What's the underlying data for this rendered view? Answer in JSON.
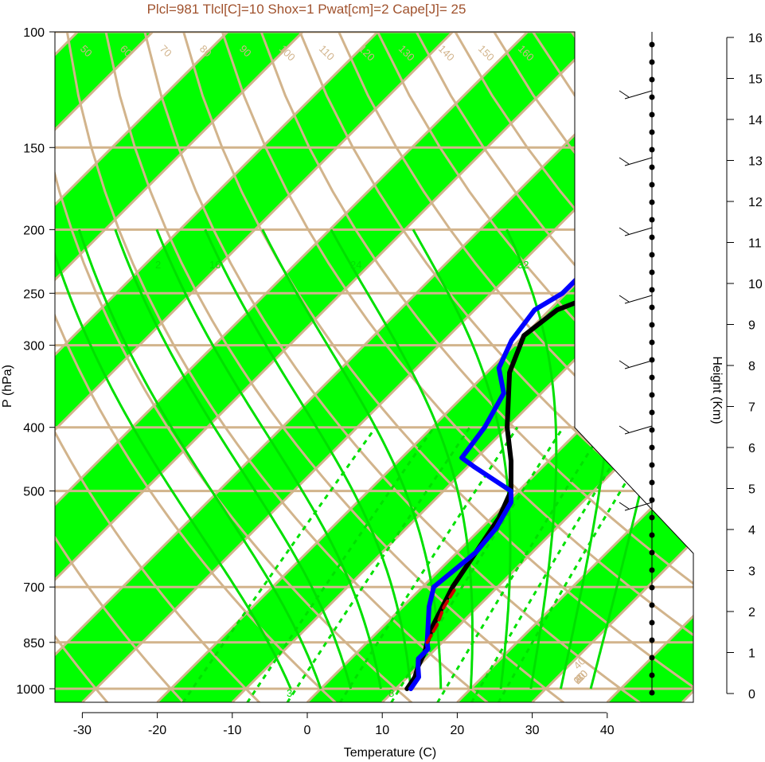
{
  "chart_data": {
    "type": "line",
    "title": "Plcl=981 Tlcl[C]=10 Shox=1 Pwat[cm]=2 Cape[J]= 25",
    "xlabel": "Temperature (C)",
    "ylabel": "P (hPa)",
    "y2label": "Height (Km)",
    "xlim": [
      -34,
      52
    ],
    "ylim": [
      1050,
      100
    ],
    "yscale": "log",
    "x_ticks": [
      "-30",
      "-20",
      "-10",
      "0",
      "10",
      "20",
      "30",
      "40"
    ],
    "y_ticks": [
      "100",
      "150",
      "200",
      "250",
      "300",
      "400",
      "500",
      "700",
      "850",
      "1000"
    ],
    "height_ticks": [
      "0",
      "1",
      "2",
      "3",
      "4",
      "5",
      "6",
      "7",
      "8",
      "9",
      "10",
      "11",
      "12",
      "13",
      "14",
      "15",
      "16"
    ],
    "isotherm_labels": [
      "40",
      "30",
      "20",
      "10",
      "0",
      "-10",
      "-20",
      "-30"
    ],
    "dry_adiabat_labels": [
      "50",
      "60",
      "70",
      "80",
      "90",
      "100",
      "110",
      "120",
      "130",
      "140",
      "150",
      "160"
    ],
    "moist_adiabat_labels": [
      "30",
      "20",
      "10",
      "0",
      "10",
      "20",
      "30"
    ],
    "mixing_ratio_labels": [
      "2",
      "16",
      "24",
      "32",
      "3",
      "8"
    ],
    "colors": {
      "temperature": "#000000",
      "dewpoint": "#0000ff",
      "parcel": "#cc0000",
      "band": "#00ff00",
      "grid": "#d2b48c",
      "moist": "#00e000",
      "title": "#a0522d"
    },
    "series": [
      {
        "name": "temperature",
        "points": [
          [
            11.5,
            1000
          ],
          [
            11,
            960
          ],
          [
            10,
            925
          ],
          [
            9,
            880
          ],
          [
            8,
            850
          ],
          [
            6.5,
            800
          ],
          [
            4,
            700
          ],
          [
            2.5,
            620
          ],
          [
            1,
            550
          ],
          [
            -1,
            500
          ],
          [
            -5,
            450
          ],
          [
            -10,
            400
          ],
          [
            -17,
            330
          ],
          [
            -20,
            290
          ],
          [
            -19,
            265
          ],
          [
            -15.5,
            250
          ],
          [
            -10,
            230
          ],
          [
            -3,
            205
          ],
          [
            3,
            185
          ],
          [
            8,
            170
          ],
          [
            12,
            150
          ],
          [
            14,
            120
          ],
          [
            14.5,
            112
          ]
        ]
      },
      {
        "name": "dewpoint",
        "points": [
          [
            12,
            1000
          ],
          [
            11.5,
            960
          ],
          [
            10,
            925
          ],
          [
            9,
            900
          ],
          [
            9,
            870
          ],
          [
            8,
            850
          ],
          [
            3.5,
            750
          ],
          [
            1.5,
            700
          ],
          [
            2.5,
            620
          ],
          [
            2,
            570
          ],
          [
            0.5,
            520
          ],
          [
            -1,
            500
          ],
          [
            -9,
            460
          ],
          [
            -12,
            445
          ],
          [
            -13,
            400
          ],
          [
            -15,
            355
          ],
          [
            -19,
            325
          ],
          [
            -21,
            295
          ],
          [
            -22,
            265
          ],
          [
            -20.5,
            250
          ],
          [
            -20.5,
            230
          ],
          [
            -22,
            210
          ],
          [
            -23,
            195
          ],
          [
            -23,
            185
          ],
          [
            -17,
            150
          ],
          [
            -7,
            112
          ]
        ]
      },
      {
        "name": "parcel",
        "points": [
          [
            8,
            850
          ],
          [
            7,
            800
          ],
          [
            5.5,
            750
          ],
          [
            4.5,
            700
          ]
        ]
      }
    ],
    "wind_dots": 38
  }
}
